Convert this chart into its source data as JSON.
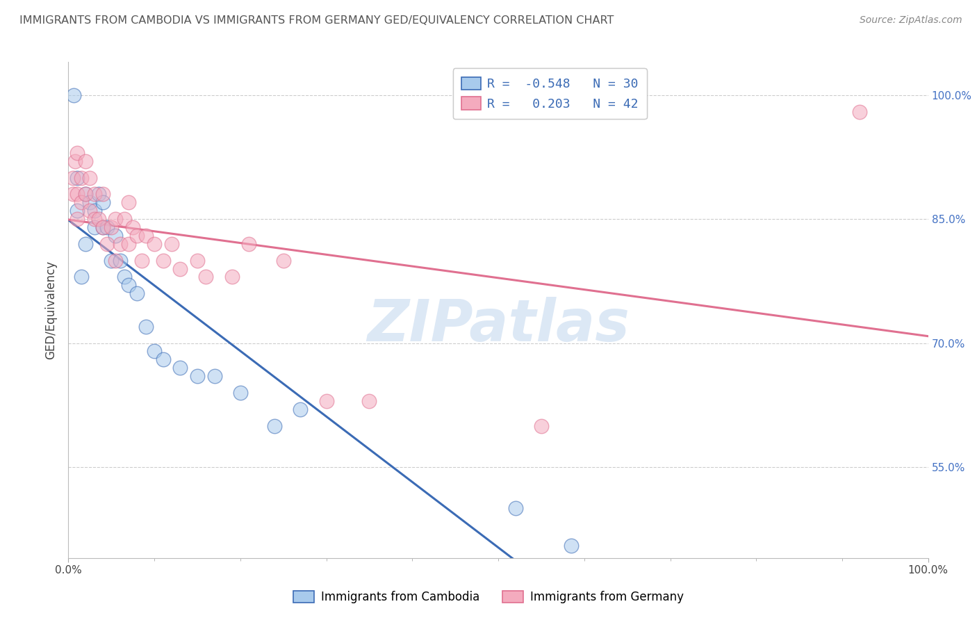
{
  "title": "IMMIGRANTS FROM CAMBODIA VS IMMIGRANTS FROM GERMANY GED/EQUIVALENCY CORRELATION CHART",
  "source": "Source: ZipAtlas.com",
  "ylabel": "GED/Equivalency",
  "yticks_labels": [
    "100.0%",
    "85.0%",
    "70.0%",
    "55.0%"
  ],
  "ytick_vals": [
    1.0,
    0.85,
    0.7,
    0.55
  ],
  "xlim": [
    0.0,
    1.0
  ],
  "ylim": [
    0.44,
    1.04
  ],
  "r_cambodia": -0.548,
  "n_cambodia": 30,
  "r_germany": 0.203,
  "n_germany": 42,
  "color_cambodia": "#A8CAEC",
  "color_germany": "#F4ABBE",
  "line_color_cambodia": "#3B6BB5",
  "line_color_germany": "#E07090",
  "legend_label_cambodia": "Immigrants from Cambodia",
  "legend_label_germany": "Immigrants from Germany",
  "cambodia_x": [
    0.006,
    0.01,
    0.01,
    0.015,
    0.02,
    0.02,
    0.025,
    0.03,
    0.03,
    0.035,
    0.04,
    0.04,
    0.045,
    0.05,
    0.055,
    0.06,
    0.065,
    0.07,
    0.08,
    0.09,
    0.1,
    0.11,
    0.13,
    0.15,
    0.17,
    0.2,
    0.24,
    0.27,
    0.52,
    0.585
  ],
  "cambodia_y": [
    1.0,
    0.86,
    0.9,
    0.78,
    0.82,
    0.88,
    0.87,
    0.84,
    0.86,
    0.88,
    0.84,
    0.87,
    0.84,
    0.8,
    0.83,
    0.8,
    0.78,
    0.77,
    0.76,
    0.72,
    0.69,
    0.68,
    0.67,
    0.66,
    0.66,
    0.64,
    0.6,
    0.62,
    0.5,
    0.455
  ],
  "germany_x": [
    0.005,
    0.005,
    0.008,
    0.01,
    0.01,
    0.01,
    0.015,
    0.015,
    0.02,
    0.02,
    0.025,
    0.025,
    0.03,
    0.03,
    0.035,
    0.04,
    0.04,
    0.045,
    0.05,
    0.055,
    0.055,
    0.06,
    0.065,
    0.07,
    0.07,
    0.075,
    0.08,
    0.085,
    0.09,
    0.1,
    0.11,
    0.12,
    0.13,
    0.15,
    0.16,
    0.19,
    0.21,
    0.25,
    0.3,
    0.35,
    0.55,
    0.92
  ],
  "germany_y": [
    0.88,
    0.9,
    0.92,
    0.85,
    0.88,
    0.93,
    0.87,
    0.9,
    0.88,
    0.92,
    0.86,
    0.9,
    0.85,
    0.88,
    0.85,
    0.84,
    0.88,
    0.82,
    0.84,
    0.8,
    0.85,
    0.82,
    0.85,
    0.82,
    0.87,
    0.84,
    0.83,
    0.8,
    0.83,
    0.82,
    0.8,
    0.82,
    0.79,
    0.8,
    0.78,
    0.78,
    0.82,
    0.8,
    0.63,
    0.63,
    0.6,
    0.98
  ]
}
